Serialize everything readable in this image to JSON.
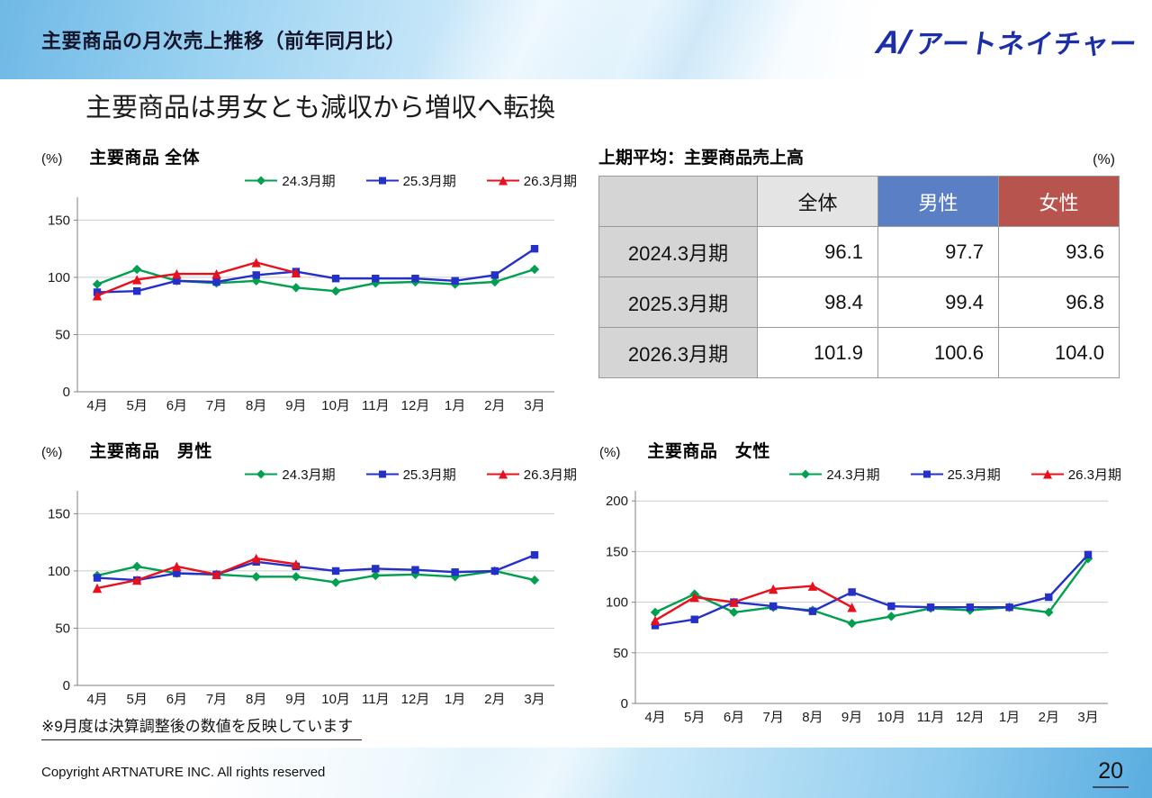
{
  "header": {
    "title": "主要商品の月次売上推移（前年同月比）",
    "logo_mark": "A/",
    "logo_text": "アートネイチャー",
    "logo_color": "#1c2fa8"
  },
  "headline": "主要商品は男女とも減収から増収へ転換",
  "colors": {
    "series_green": "#00a050",
    "series_blue": "#2430c8",
    "series_red": "#e8101c",
    "table_male_header": "#5b7fc4",
    "table_female_header": "#b8544e"
  },
  "chart_data": [
    {
      "type": "line",
      "title": "主要商品 全体",
      "unit": "(%)",
      "axis_max": 170,
      "yticks": [
        0,
        50,
        100,
        150
      ],
      "categories": [
        "4月",
        "5月",
        "6月",
        "7月",
        "8月",
        "9月",
        "10月",
        "11月",
        "12月",
        "1月",
        "2月",
        "3月"
      ],
      "series": [
        {
          "name": "24.3月期",
          "color": "#00a050",
          "marker": "diamond",
          "values": [
            94,
            107,
            97,
            95,
            97,
            91,
            88,
            95,
            96,
            94,
            96,
            107
          ]
        },
        {
          "name": "25.3月期",
          "color": "#2430c8",
          "marker": "square",
          "values": [
            87,
            88,
            97,
            96,
            102,
            105,
            99,
            99,
            99,
            97,
            102,
            125
          ]
        },
        {
          "name": "26.3月期",
          "color": "#e8101c",
          "marker": "triangle",
          "values": [
            84,
            98,
            103,
            103,
            113,
            104
          ]
        }
      ]
    },
    {
      "type": "line",
      "title": "主要商品　男性",
      "unit": "(%)",
      "axis_max": 170,
      "yticks": [
        0,
        50,
        100,
        150
      ],
      "categories": [
        "4月",
        "5月",
        "6月",
        "7月",
        "8月",
        "9月",
        "10月",
        "11月",
        "12月",
        "1月",
        "2月",
        "3月"
      ],
      "series": [
        {
          "name": "24.3月期",
          "color": "#00a050",
          "marker": "diamond",
          "values": [
            96,
            104,
            98,
            97,
            95,
            95,
            90,
            96,
            97,
            95,
            100,
            92
          ]
        },
        {
          "name": "25.3月期",
          "color": "#2430c8",
          "marker": "square",
          "values": [
            94,
            92,
            98,
            97,
            108,
            104,
            100,
            102,
            101,
            99,
            100,
            114
          ]
        },
        {
          "name": "26.3月期",
          "color": "#e8101c",
          "marker": "triangle",
          "values": [
            85,
            92,
            104,
            97,
            111,
            106
          ]
        }
      ]
    },
    {
      "type": "line",
      "title": "主要商品　女性",
      "unit": "(%)",
      "axis_max": 210,
      "yticks": [
        0,
        50,
        100,
        150,
        200
      ],
      "categories": [
        "4月",
        "5月",
        "6月",
        "7月",
        "8月",
        "9月",
        "10月",
        "11月",
        "12月",
        "1月",
        "2月",
        "3月"
      ],
      "series": [
        {
          "name": "24.3月期",
          "color": "#00a050",
          "marker": "diamond",
          "values": [
            90,
            108,
            90,
            95,
            92,
            79,
            86,
            94,
            92,
            95,
            90,
            143
          ]
        },
        {
          "name": "25.3月期",
          "color": "#2430c8",
          "marker": "square",
          "values": [
            77,
            83,
            100,
            96,
            91,
            110,
            96,
            95,
            95,
            95,
            105,
            147
          ]
        },
        {
          "name": "26.3月期",
          "color": "#e8101c",
          "marker": "triangle",
          "values": [
            82,
            105,
            100,
            113,
            116,
            95
          ]
        }
      ]
    }
  ],
  "table": {
    "title": "上期平均：主要商品売上高",
    "unit": "(%)",
    "col_headers": [
      "",
      "全体",
      "男性",
      "女性"
    ],
    "rows": [
      {
        "label": "2024.3月期",
        "values": [
          "96.1",
          "97.7",
          "93.6"
        ]
      },
      {
        "label": "2025.3月期",
        "values": [
          "98.4",
          "99.4",
          "96.8"
        ]
      },
      {
        "label": "2026.3月期",
        "values": [
          "101.9",
          "100.6",
          "104.0"
        ]
      }
    ]
  },
  "footnote": "※9月度は決算調整後の数値を反映しています",
  "footer": {
    "copyright": "Copyright ARTNATURE INC. All rights reserved",
    "page": "20"
  }
}
